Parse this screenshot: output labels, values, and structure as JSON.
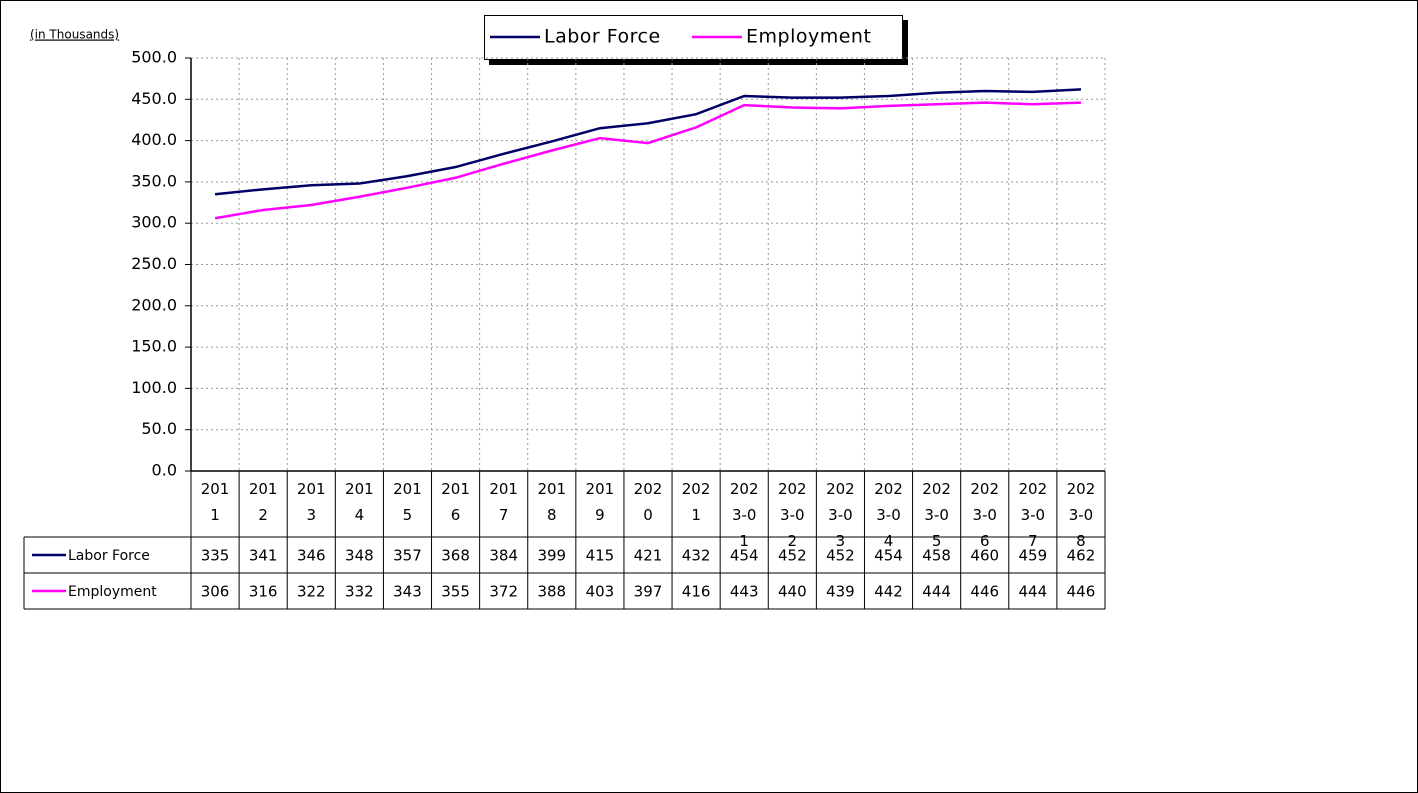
{
  "chart_data": {
    "type": "line",
    "unit_label": "(in Thousands)",
    "categories": [
      "2011",
      "2012",
      "2013",
      "2014",
      "2015",
      "2016",
      "2017",
      "2018",
      "2019",
      "2020",
      "2021",
      "2023-01",
      "2023-02",
      "2023-03",
      "2023-04",
      "2023-05",
      "2023-06",
      "2023-07",
      "2023-08"
    ],
    "series": [
      {
        "name": "Labor Force",
        "color": "#000066",
        "values": [
          335,
          341,
          346,
          348,
          357,
          368,
          384,
          399,
          415,
          421,
          432,
          454,
          452,
          452,
          454,
          458,
          460,
          459,
          462
        ]
      },
      {
        "name": "Employment",
        "color": "#ff00ff",
        "values": [
          306,
          316,
          322,
          332,
          343,
          355,
          372,
          388,
          403,
          397,
          416,
          443,
          440,
          439,
          442,
          444,
          446,
          444,
          446
        ]
      }
    ],
    "ylim": [
      0,
      500
    ],
    "yticks": [
      {
        "value": 0,
        "label": "0.0"
      },
      {
        "value": 50,
        "label": "50.0"
      },
      {
        "value": 100,
        "label": "100.0"
      },
      {
        "value": 150,
        "label": "150.0"
      },
      {
        "value": 200,
        "label": "200.0"
      },
      {
        "value": 250,
        "label": "250.0"
      },
      {
        "value": 300,
        "label": "300.0"
      },
      {
        "value": 350,
        "label": "350.0"
      },
      {
        "value": 400,
        "label": "400.0"
      },
      {
        "value": 450,
        "label": "450.0"
      },
      {
        "value": 500,
        "label": "500.0"
      }
    ],
    "grid": true
  }
}
